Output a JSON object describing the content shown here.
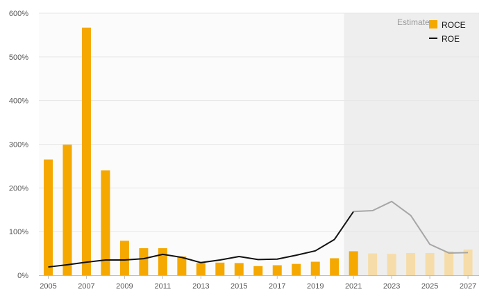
{
  "chart_data": {
    "type": "bar",
    "x": [
      2005,
      2006,
      2007,
      2008,
      2009,
      2010,
      2011,
      2012,
      2013,
      2014,
      2015,
      2016,
      2017,
      2018,
      2019,
      2020,
      2021,
      2022,
      2023,
      2024,
      2025,
      2026,
      2027
    ],
    "x_tick_labels": [
      "2005",
      "2007",
      "2009",
      "2011",
      "2013",
      "2015",
      "2017",
      "2019",
      "2021",
      "2023",
      "2025",
      "2027"
    ],
    "y_tick_labels": [
      "0%",
      "100%",
      "200%",
      "300%",
      "400%",
      "500%",
      "600%"
    ],
    "ylim": [
      0,
      600
    ],
    "estimates_from": 2021,
    "estimates_label": "Estimates",
    "series": [
      {
        "name": "ROCE",
        "type": "bar",
        "color": "#f5a800",
        "estimate_color": "#f6dca8",
        "values": [
          265,
          299,
          567,
          240,
          79,
          62,
          62,
          43,
          28,
          29,
          28,
          21,
          23,
          26,
          31,
          39,
          55,
          50,
          49,
          51,
          51,
          55,
          59
        ]
      },
      {
        "name": "ROE",
        "type": "line",
        "color": "#111111",
        "estimate_color": "#a6a6a6",
        "values": [
          19,
          24,
          30,
          35,
          35,
          38,
          48,
          41,
          29,
          35,
          43,
          36,
          37,
          46,
          56,
          82,
          146,
          148,
          169,
          137,
          71,
          51,
          52
        ]
      }
    ],
    "legend": {
      "position": "top-right",
      "entries": [
        "ROCE",
        "ROE"
      ]
    },
    "grid": true
  }
}
